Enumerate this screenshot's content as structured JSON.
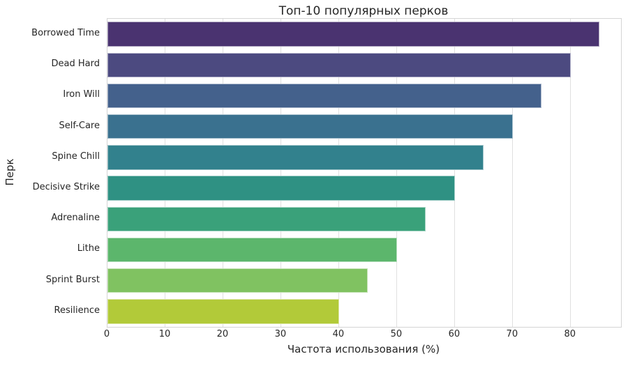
{
  "chart_data": {
    "type": "bar",
    "orientation": "horizontal",
    "title": "Топ-10 популярных перков",
    "xlabel": "Частота использования (%)",
    "ylabel": "Перк",
    "categories": [
      "Borrowed Time",
      "Dead Hard",
      "Iron Will",
      "Self-Care",
      "Spine Chill",
      "Decisive Strike",
      "Adrenaline",
      "Lithe",
      "Sprint Burst",
      "Resilience"
    ],
    "values": [
      85,
      80,
      75,
      70,
      65,
      60,
      55,
      50,
      45,
      40
    ],
    "bar_colors": [
      "#4a3370",
      "#4c4a80",
      "#44618c",
      "#3a718f",
      "#32818d",
      "#2f9183",
      "#3aa17a",
      "#5cb66c",
      "#80c261",
      "#b2ca39"
    ],
    "x_ticks": [
      0,
      10,
      20,
      30,
      40,
      50,
      60,
      70,
      80
    ],
    "xlim": [
      0,
      88.7
    ],
    "grid": true,
    "legend_position": "none",
    "colors": {
      "grid": "#e0e0e0",
      "spine": "#d5d5d5",
      "text": "#262626",
      "background": "#ffffff"
    }
  }
}
